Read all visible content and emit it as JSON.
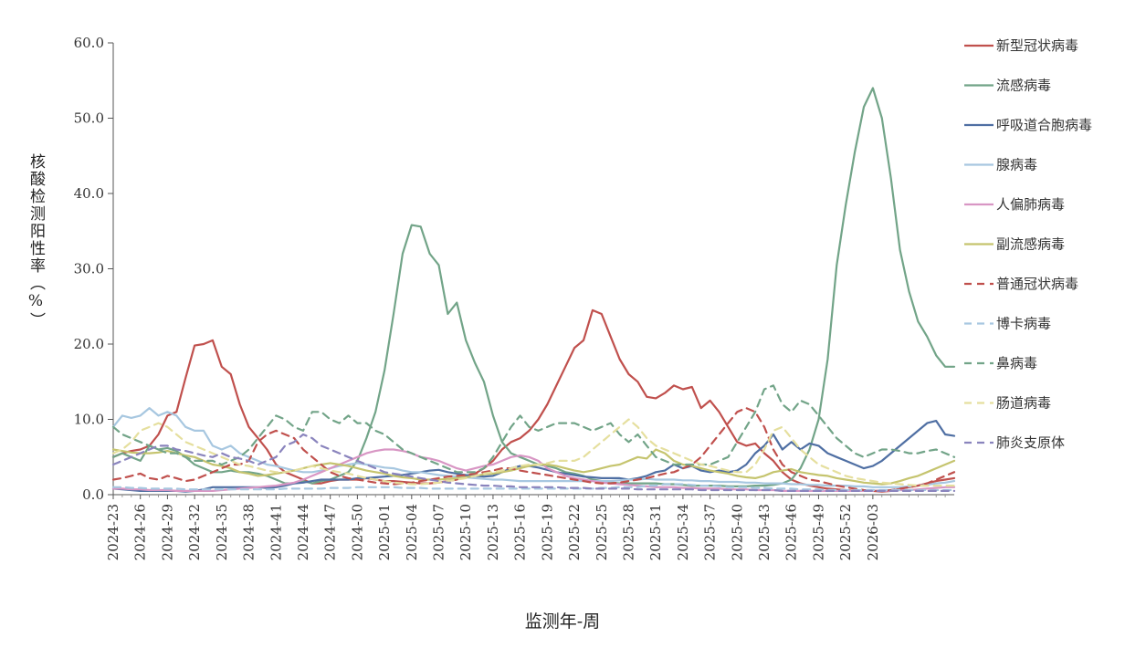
{
  "chart_data": {
    "type": "line",
    "xlabel": "监测年-周",
    "ylabel": "核酸检测阳性率（%）",
    "ylim": [
      0,
      60
    ],
    "yticks": [
      "0.0",
      "10.0",
      "20.0",
      "30.0",
      "40.0",
      "50.0",
      "60.0"
    ],
    "x_tick_labels": [
      "2024-23",
      "2024-26",
      "2024-29",
      "2024-32",
      "2024-35",
      "2024-38",
      "2024-41",
      "2024-44",
      "2024-47",
      "2024-50",
      "2025-01",
      "2025-04",
      "2025-07",
      "2025-10",
      "2025-13",
      "2025-16",
      "2025-19",
      "2025-22",
      "2025-25",
      "2025-28",
      "2025-31",
      "2025-34",
      "2025-37",
      "2025-40",
      "2025-43",
      "2025-46",
      "2025-49",
      "2025-52",
      "2026-03"
    ],
    "grid": false,
    "legend_position": "right",
    "series": [
      {
        "name": "新型冠状病毒",
        "color": "#c0504d",
        "dash": false,
        "values": [
          5.0,
          5.5,
          5.8,
          6.0,
          6.5,
          8.0,
          10.5,
          11.0,
          15.5,
          19.8,
          20.0,
          20.5,
          17.0,
          16.0,
          12.0,
          9.0,
          7.5,
          6.0,
          4.0,
          3.0,
          2.5,
          2.0,
          1.5,
          1.5,
          1.8,
          2.0,
          2.0,
          2.0,
          2.2,
          2.0,
          1.8,
          1.8,
          1.7,
          1.6,
          1.5,
          1.5,
          1.6,
          1.8,
          2.0,
          2.5,
          2.8,
          3.5,
          4.5,
          6.0,
          7.0,
          7.5,
          8.5,
          10.0,
          12.0,
          14.5,
          17.0,
          19.5,
          20.5,
          24.5,
          24.0,
          21.0,
          18.0,
          16.0,
          15.0,
          13.0,
          12.8,
          13.5,
          14.5,
          14.0,
          14.3,
          11.5,
          12.5,
          11.0,
          9.0,
          7.0,
          6.5,
          6.8,
          5.5,
          4.5,
          3.0,
          2.0,
          1.5,
          1.2,
          1.0,
          0.8,
          0.7,
          0.6,
          0.5,
          0.5,
          0.5,
          0.4,
          0.5,
          0.8,
          1.0,
          1.2,
          1.5,
          1.8,
          2.0,
          2.2
        ]
      },
      {
        "name": "流感病毒",
        "color": "#72a488",
        "dash": false,
        "values": [
          5.0,
          5.5,
          5.0,
          4.5,
          6.5,
          6.0,
          6.2,
          5.8,
          5.0,
          4.0,
          3.5,
          3.0,
          3.0,
          3.2,
          3.0,
          3.0,
          2.8,
          2.5,
          2.0,
          1.5,
          1.5,
          1.8,
          1.5,
          1.8,
          2.0,
          2.5,
          3.0,
          4.5,
          7.5,
          11.0,
          16.5,
          24.0,
          32.0,
          35.8,
          35.6,
          32.0,
          30.5,
          24.0,
          25.5,
          20.5,
          17.5,
          15.0,
          10.5,
          7.0,
          5.5,
          5.0,
          4.5,
          4.0,
          3.8,
          3.5,
          3.0,
          2.8,
          2.5,
          2.0,
          1.8,
          1.6,
          1.5,
          1.5,
          1.5,
          1.5,
          1.5,
          1.4,
          1.4,
          1.3,
          1.2,
          1.2,
          1.2,
          1.2,
          1.1,
          1.1,
          1.1,
          1.2,
          1.2,
          1.3,
          1.5,
          2.0,
          3.5,
          6.0,
          10.0,
          18.0,
          30.5,
          38.5,
          45.5,
          51.5,
          54.0,
          50.0,
          42.0,
          32.5,
          27.0,
          23.0,
          21.0,
          18.5,
          17.0,
          17.0
        ]
      },
      {
        "name": "呼吸道合胞病毒",
        "color": "#4f6fa3",
        "dash": false,
        "values": [
          0.8,
          0.7,
          0.6,
          0.5,
          0.5,
          0.5,
          0.5,
          0.5,
          0.4,
          0.5,
          0.7,
          1.0,
          1.0,
          1.0,
          1.0,
          1.0,
          1.0,
          0.9,
          1.0,
          1.2,
          1.5,
          1.6,
          1.8,
          2.0,
          2.0,
          2.0,
          2.0,
          2.2,
          2.2,
          2.3,
          2.4,
          2.5,
          2.6,
          2.8,
          3.0,
          3.2,
          3.3,
          3.0,
          2.8,
          2.6,
          2.5,
          2.4,
          2.5,
          3.0,
          3.5,
          3.8,
          3.8,
          3.6,
          3.3,
          3.0,
          2.8,
          2.6,
          2.4,
          2.3,
          2.2,
          2.2,
          2.2,
          2.0,
          2.2,
          2.5,
          3.0,
          3.2,
          4.0,
          3.5,
          3.8,
          3.2,
          3.0,
          3.2,
          3.0,
          3.2,
          4.0,
          5.5,
          6.5,
          8.0,
          6.0,
          7.0,
          6.0,
          6.8,
          6.5,
          5.5,
          5.0,
          4.5,
          4.0,
          3.5,
          3.8,
          4.5,
          5.5,
          6.5,
          7.5,
          8.5,
          9.5,
          9.8,
          8.0,
          7.8
        ]
      },
      {
        "name": "腺病毒",
        "color": "#a7c7e0",
        "dash": false,
        "values": [
          9.0,
          10.5,
          10.2,
          10.5,
          11.5,
          10.5,
          11.0,
          10.5,
          9.0,
          8.5,
          8.5,
          6.5,
          6.0,
          6.5,
          5.5,
          5.0,
          4.5,
          4.0,
          3.8,
          3.5,
          3.2,
          3.0,
          3.0,
          3.2,
          3.5,
          3.8,
          4.0,
          4.2,
          4.0,
          3.8,
          3.6,
          3.5,
          3.2,
          3.0,
          3.0,
          2.8,
          2.6,
          2.5,
          2.4,
          2.3,
          2.2,
          2.1,
          2.0,
          2.0,
          1.9,
          1.8,
          1.8,
          1.8,
          1.8,
          1.8,
          1.8,
          1.8,
          1.8,
          1.8,
          1.8,
          1.8,
          1.9,
          2.0,
          2.0,
          2.1,
          2.0,
          2.0,
          2.0,
          1.9,
          1.9,
          1.8,
          1.8,
          1.7,
          1.7,
          1.7,
          1.6,
          1.6,
          1.5,
          1.5,
          1.5,
          1.4,
          1.4,
          1.3,
          1.3,
          1.2,
          1.2,
          1.2,
          1.1,
          1.1,
          1.0,
          1.0,
          1.0,
          1.0,
          1.1,
          1.2,
          1.3,
          1.5,
          1.6,
          1.8
        ]
      },
      {
        "name": "人偏肺病毒",
        "color": "#d896c4",
        "dash": false,
        "values": [
          0.8,
          0.8,
          0.7,
          0.7,
          0.6,
          0.6,
          0.6,
          0.5,
          0.5,
          0.5,
          0.5,
          0.5,
          0.6,
          0.7,
          0.8,
          0.9,
          1.0,
          1.1,
          1.2,
          1.4,
          1.6,
          2.0,
          2.5,
          3.0,
          3.5,
          4.0,
          4.5,
          5.0,
          5.5,
          5.8,
          6.0,
          6.0,
          5.8,
          5.5,
          5.0,
          4.8,
          4.5,
          4.0,
          3.5,
          3.2,
          3.5,
          3.8,
          4.0,
          4.5,
          5.0,
          5.2,
          5.0,
          4.5,
          3.5,
          3.0,
          2.5,
          2.2,
          2.0,
          1.8,
          1.6,
          1.5,
          1.4,
          1.3,
          1.2,
          1.1,
          1.0,
          1.0,
          1.0,
          0.9,
          0.9,
          0.8,
          0.8,
          0.8,
          0.7,
          0.7,
          0.7,
          0.6,
          0.6,
          0.6,
          0.5,
          0.5,
          0.5,
          0.5,
          0.5,
          0.5,
          0.5,
          0.5,
          0.5,
          0.5,
          0.5,
          0.5,
          0.5,
          0.6,
          0.6,
          0.7,
          0.8,
          0.9,
          1.0,
          1.0
        ]
      },
      {
        "name": "副流感病毒",
        "color": "#c5c46e",
        "dash": false,
        "values": [
          6.0,
          5.8,
          5.6,
          5.5,
          5.5,
          5.6,
          5.8,
          5.5,
          5.2,
          5.0,
          4.5,
          4.0,
          3.8,
          3.5,
          3.0,
          2.8,
          2.5,
          2.6,
          2.8,
          3.0,
          3.2,
          3.5,
          3.8,
          4.0,
          4.2,
          4.0,
          3.8,
          3.5,
          3.2,
          3.0,
          2.8,
          2.5,
          2.3,
          2.2,
          2.0,
          2.0,
          2.0,
          2.1,
          2.2,
          2.3,
          2.5,
          2.7,
          2.8,
          3.0,
          3.2,
          3.5,
          3.8,
          4.0,
          4.0,
          3.8,
          3.5,
          3.2,
          3.0,
          3.2,
          3.5,
          3.8,
          4.0,
          4.5,
          5.0,
          4.8,
          6.0,
          5.5,
          4.5,
          4.0,
          3.8,
          3.5,
          3.2,
          3.0,
          2.8,
          2.5,
          2.3,
          2.2,
          2.5,
          3.0,
          3.2,
          3.4,
          3.0,
          2.8,
          2.6,
          2.5,
          2.2,
          2.0,
          1.8,
          1.6,
          1.5,
          1.4,
          1.5,
          1.8,
          2.2,
          2.5,
          3.0,
          3.5,
          4.0,
          4.5
        ]
      },
      {
        "name": "普通冠状病毒",
        "color": "#c0504d",
        "dash": true,
        "values": [
          2.0,
          2.2,
          2.5,
          2.8,
          2.2,
          2.0,
          2.5,
          2.2,
          1.8,
          2.0,
          2.5,
          3.0,
          3.5,
          4.0,
          4.0,
          4.5,
          7.0,
          8.0,
          8.5,
          8.0,
          7.5,
          6.0,
          5.0,
          4.0,
          3.0,
          2.5,
          2.2,
          2.0,
          1.8,
          1.6,
          1.5,
          1.4,
          1.5,
          1.6,
          1.8,
          2.0,
          2.2,
          2.4,
          2.5,
          2.6,
          2.8,
          3.0,
          3.2,
          3.5,
          3.5,
          3.2,
          3.0,
          2.8,
          2.6,
          2.4,
          2.2,
          2.0,
          1.8,
          1.6,
          1.5,
          1.5,
          1.6,
          1.8,
          2.0,
          2.2,
          2.5,
          2.8,
          3.0,
          3.5,
          4.0,
          5.0,
          6.5,
          8.0,
          9.5,
          11.0,
          11.5,
          11.0,
          9.0,
          6.0,
          4.0,
          3.0,
          2.5,
          2.0,
          1.8,
          1.5,
          1.2,
          1.0,
          0.8,
          0.6,
          0.5,
          0.5,
          0.6,
          0.8,
          1.0,
          1.2,
          1.5,
          2.0,
          2.5,
          3.0
        ]
      },
      {
        "name": "博卡病毒",
        "color": "#a7c7e0",
        "dash": true,
        "values": [
          1.0,
          1.0,
          0.9,
          0.9,
          0.8,
          0.8,
          0.8,
          0.8,
          0.7,
          0.7,
          0.7,
          0.7,
          0.7,
          0.7,
          0.7,
          0.7,
          0.7,
          0.7,
          0.7,
          0.8,
          0.8,
          0.8,
          0.8,
          0.8,
          0.9,
          0.9,
          0.9,
          1.0,
          1.0,
          1.0,
          1.0,
          1.0,
          0.9,
          0.9,
          0.9,
          0.8,
          0.8,
          0.8,
          0.8,
          0.8,
          0.8,
          0.8,
          0.8,
          0.8,
          0.8,
          0.8,
          0.8,
          0.8,
          0.8,
          0.8,
          0.8,
          0.8,
          0.8,
          0.8,
          0.9,
          0.9,
          1.0,
          1.0,
          1.0,
          1.2,
          1.2,
          1.4,
          1.4,
          1.4,
          1.3,
          1.2,
          1.2,
          1.1,
          1.0,
          1.0,
          1.0,
          0.9,
          0.9,
          0.8,
          0.8,
          0.8,
          0.7,
          0.7,
          0.7,
          0.6,
          0.6,
          0.6,
          0.6,
          0.6,
          0.6,
          0.6,
          0.6,
          0.6,
          0.6,
          0.6,
          0.6,
          0.6,
          0.6,
          0.6
        ]
      },
      {
        "name": "鼻病毒",
        "color": "#72a488",
        "dash": true,
        "values": [
          9.0,
          8.0,
          7.5,
          7.0,
          6.5,
          6.0,
          5.5,
          5.5,
          5.0,
          4.5,
          4.5,
          4.5,
          4.0,
          4.5,
          5.0,
          6.0,
          7.5,
          9.0,
          10.5,
          10.0,
          9.0,
          8.5,
          11.0,
          11.0,
          10.0,
          9.5,
          10.5,
          9.5,
          9.5,
          8.5,
          8.0,
          7.0,
          6.0,
          5.5,
          5.0,
          4.5,
          4.0,
          3.5,
          3.0,
          3.0,
          3.0,
          3.5,
          5.0,
          7.0,
          9.0,
          10.5,
          9.0,
          8.5,
          9.0,
          9.5,
          9.5,
          9.5,
          9.0,
          8.5,
          9.0,
          9.5,
          8.0,
          7.0,
          8.0,
          6.5,
          5.0,
          4.5,
          4.0,
          4.0,
          4.0,
          4.0,
          4.0,
          4.5,
          5.0,
          7.0,
          9.0,
          11.0,
          14.0,
          14.5,
          12.0,
          11.0,
          12.5,
          12.0,
          10.5,
          9.0,
          7.5,
          6.5,
          5.5,
          5.0,
          5.5,
          6.0,
          6.0,
          5.8,
          5.5,
          5.5,
          5.8,
          6.0,
          5.5,
          5.0
        ]
      },
      {
        "name": "肠道病毒",
        "color": "#e5df9e",
        "dash": true,
        "values": [
          5.5,
          6.0,
          7.0,
          8.5,
          9.0,
          9.5,
          9.0,
          8.0,
          7.0,
          6.5,
          6.0,
          5.5,
          5.0,
          4.5,
          4.0,
          3.8,
          3.5,
          3.2,
          3.0,
          3.0,
          3.2,
          3.5,
          3.8,
          3.5,
          3.2,
          3.0,
          2.8,
          2.5,
          2.2,
          2.0,
          1.8,
          1.6,
          1.5,
          1.4,
          1.4,
          1.5,
          1.6,
          1.8,
          2.0,
          2.2,
          2.5,
          2.8,
          3.0,
          3.2,
          3.5,
          3.8,
          4.0,
          4.0,
          4.2,
          4.5,
          4.5,
          4.5,
          5.0,
          6.0,
          7.0,
          8.0,
          9.0,
          10.0,
          9.0,
          7.5,
          6.5,
          6.0,
          5.5,
          5.0,
          4.5,
          4.0,
          3.8,
          3.5,
          3.2,
          3.0,
          3.0,
          4.0,
          6.0,
          8.5,
          9.0,
          7.5,
          6.0,
          5.0,
          4.0,
          3.5,
          3.0,
          2.5,
          2.2,
          2.0,
          1.8,
          1.6,
          1.5,
          1.4,
          1.3,
          1.2,
          1.2,
          1.2,
          1.2,
          1.2
        ]
      },
      {
        "name": "肺炎支原体",
        "color": "#8a84bd",
        "dash": true,
        "values": [
          4.0,
          4.5,
          5.0,
          5.5,
          6.0,
          6.5,
          6.5,
          6.0,
          5.8,
          5.5,
          5.2,
          5.0,
          5.5,
          5.0,
          4.8,
          4.5,
          4.0,
          4.5,
          5.0,
          6.5,
          7.0,
          8.0,
          7.5,
          6.5,
          6.0,
          5.5,
          5.0,
          4.5,
          4.0,
          3.5,
          3.0,
          2.8,
          2.6,
          2.4,
          2.2,
          2.0,
          1.8,
          1.6,
          1.5,
          1.4,
          1.3,
          1.2,
          1.2,
          1.1,
          1.1,
          1.0,
          1.0,
          1.0,
          1.0,
          1.0,
          0.9,
          0.9,
          0.9,
          0.8,
          0.8,
          0.8,
          0.8,
          0.8,
          0.7,
          0.7,
          0.7,
          0.7,
          0.7,
          0.7,
          0.7,
          0.6,
          0.6,
          0.6,
          0.6,
          0.6,
          0.6,
          0.6,
          0.6,
          0.6,
          0.5,
          0.5,
          0.5,
          0.5,
          0.5,
          0.5,
          0.5,
          0.5,
          0.5,
          0.5,
          0.5,
          0.5,
          0.5,
          0.5,
          0.5,
          0.5,
          0.5,
          0.5,
          0.5,
          0.5
        ]
      }
    ]
  }
}
